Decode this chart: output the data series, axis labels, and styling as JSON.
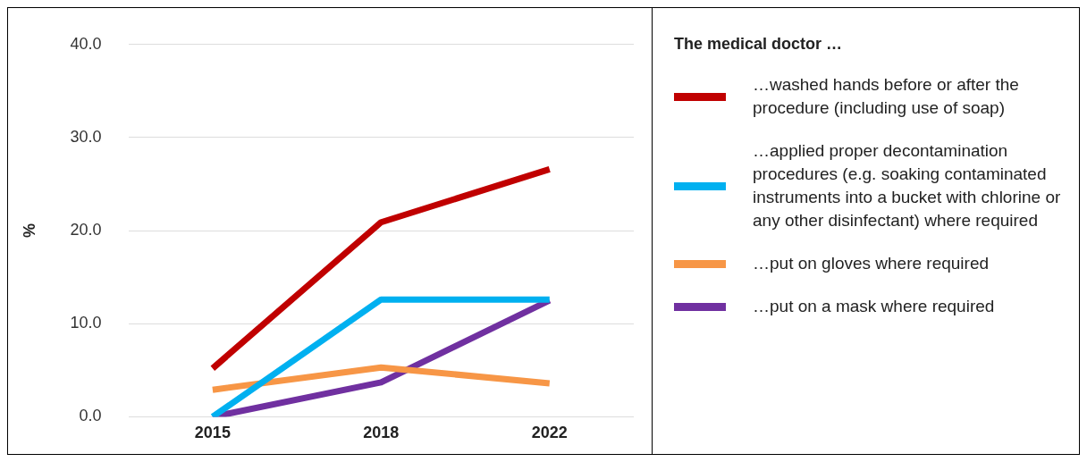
{
  "chart_data": {
    "type": "line",
    "ylabel": "%",
    "legend_title": "The medical doctor …",
    "categories": [
      "2015",
      "2018",
      "2022"
    ],
    "series": [
      {
        "name": "…washed hands before or after the procedure (including use of soap)",
        "color": "#c00000",
        "values": [
          5.2,
          20.9,
          26.6
        ]
      },
      {
        "name": "…applied proper decontamination procedures (e.g. soaking contaminated instruments into a bucket with chlorine or any other disinfectant) where required",
        "color": "#00b0f0",
        "values": [
          0,
          12.6,
          12.6
        ]
      },
      {
        "name": "…put on gloves where required",
        "color": "#f79646",
        "values": [
          2.9,
          5.3,
          3.6
        ]
      },
      {
        "name": "…put on a mask where required",
        "color": "#7030a0",
        "values": [
          0,
          3.7,
          12.5
        ]
      }
    ],
    "ylim": [
      0,
      40
    ],
    "yticks": [
      {
        "value": 0,
        "label": "0.0"
      },
      {
        "value": 10,
        "label": "10.0"
      },
      {
        "value": 20,
        "label": "20.0"
      },
      {
        "value": 30,
        "label": "30.0"
      },
      {
        "value": 40,
        "label": "40.0"
      }
    ],
    "grid": "y",
    "legend": "right",
    "marker": "none",
    "line_style": "solid"
  }
}
